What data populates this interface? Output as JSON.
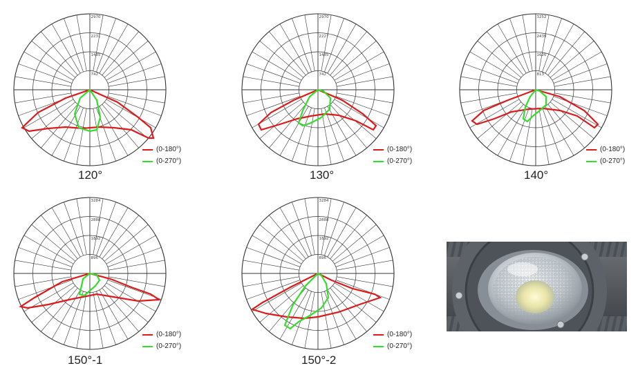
{
  "colors": {
    "c0_180": "#dd1a1a",
    "c0_270": "#33dd2a",
    "grid": "#333333"
  },
  "charts": [
    {
      "caption": "120°",
      "ticks": [
        "2970",
        "2231",
        "1485",
        "742"
      ],
      "legend": [
        {
          "label": "(0-180°)"
        },
        {
          "label": "(0-270°)"
        }
      ]
    },
    {
      "caption": "130°",
      "ticks": [
        "2970",
        "2227",
        "1485",
        "742"
      ],
      "legend": [
        {
          "label": "(0-180°)"
        },
        {
          "label": "(0-270°)"
        }
      ]
    },
    {
      "caption": "140°",
      "ticks": [
        "3252",
        "2439",
        "1626",
        "813"
      ],
      "legend": [
        {
          "label": "(0-180°)"
        },
        {
          "label": "(0-270°)"
        }
      ]
    },
    {
      "caption": "150°-1",
      "ticks": [
        "3284",
        "2888",
        "1892",
        "896"
      ],
      "legend": [
        {
          "label": "(0-180°)"
        },
        {
          "label": "(0-270°)"
        }
      ]
    },
    {
      "caption": "150°-2",
      "ticks": [
        "3284",
        "2888",
        "1892",
        "896"
      ],
      "legend": [
        {
          "label": "(0-180°)"
        },
        {
          "label": "(0-270°)"
        }
      ]
    }
  ]
}
